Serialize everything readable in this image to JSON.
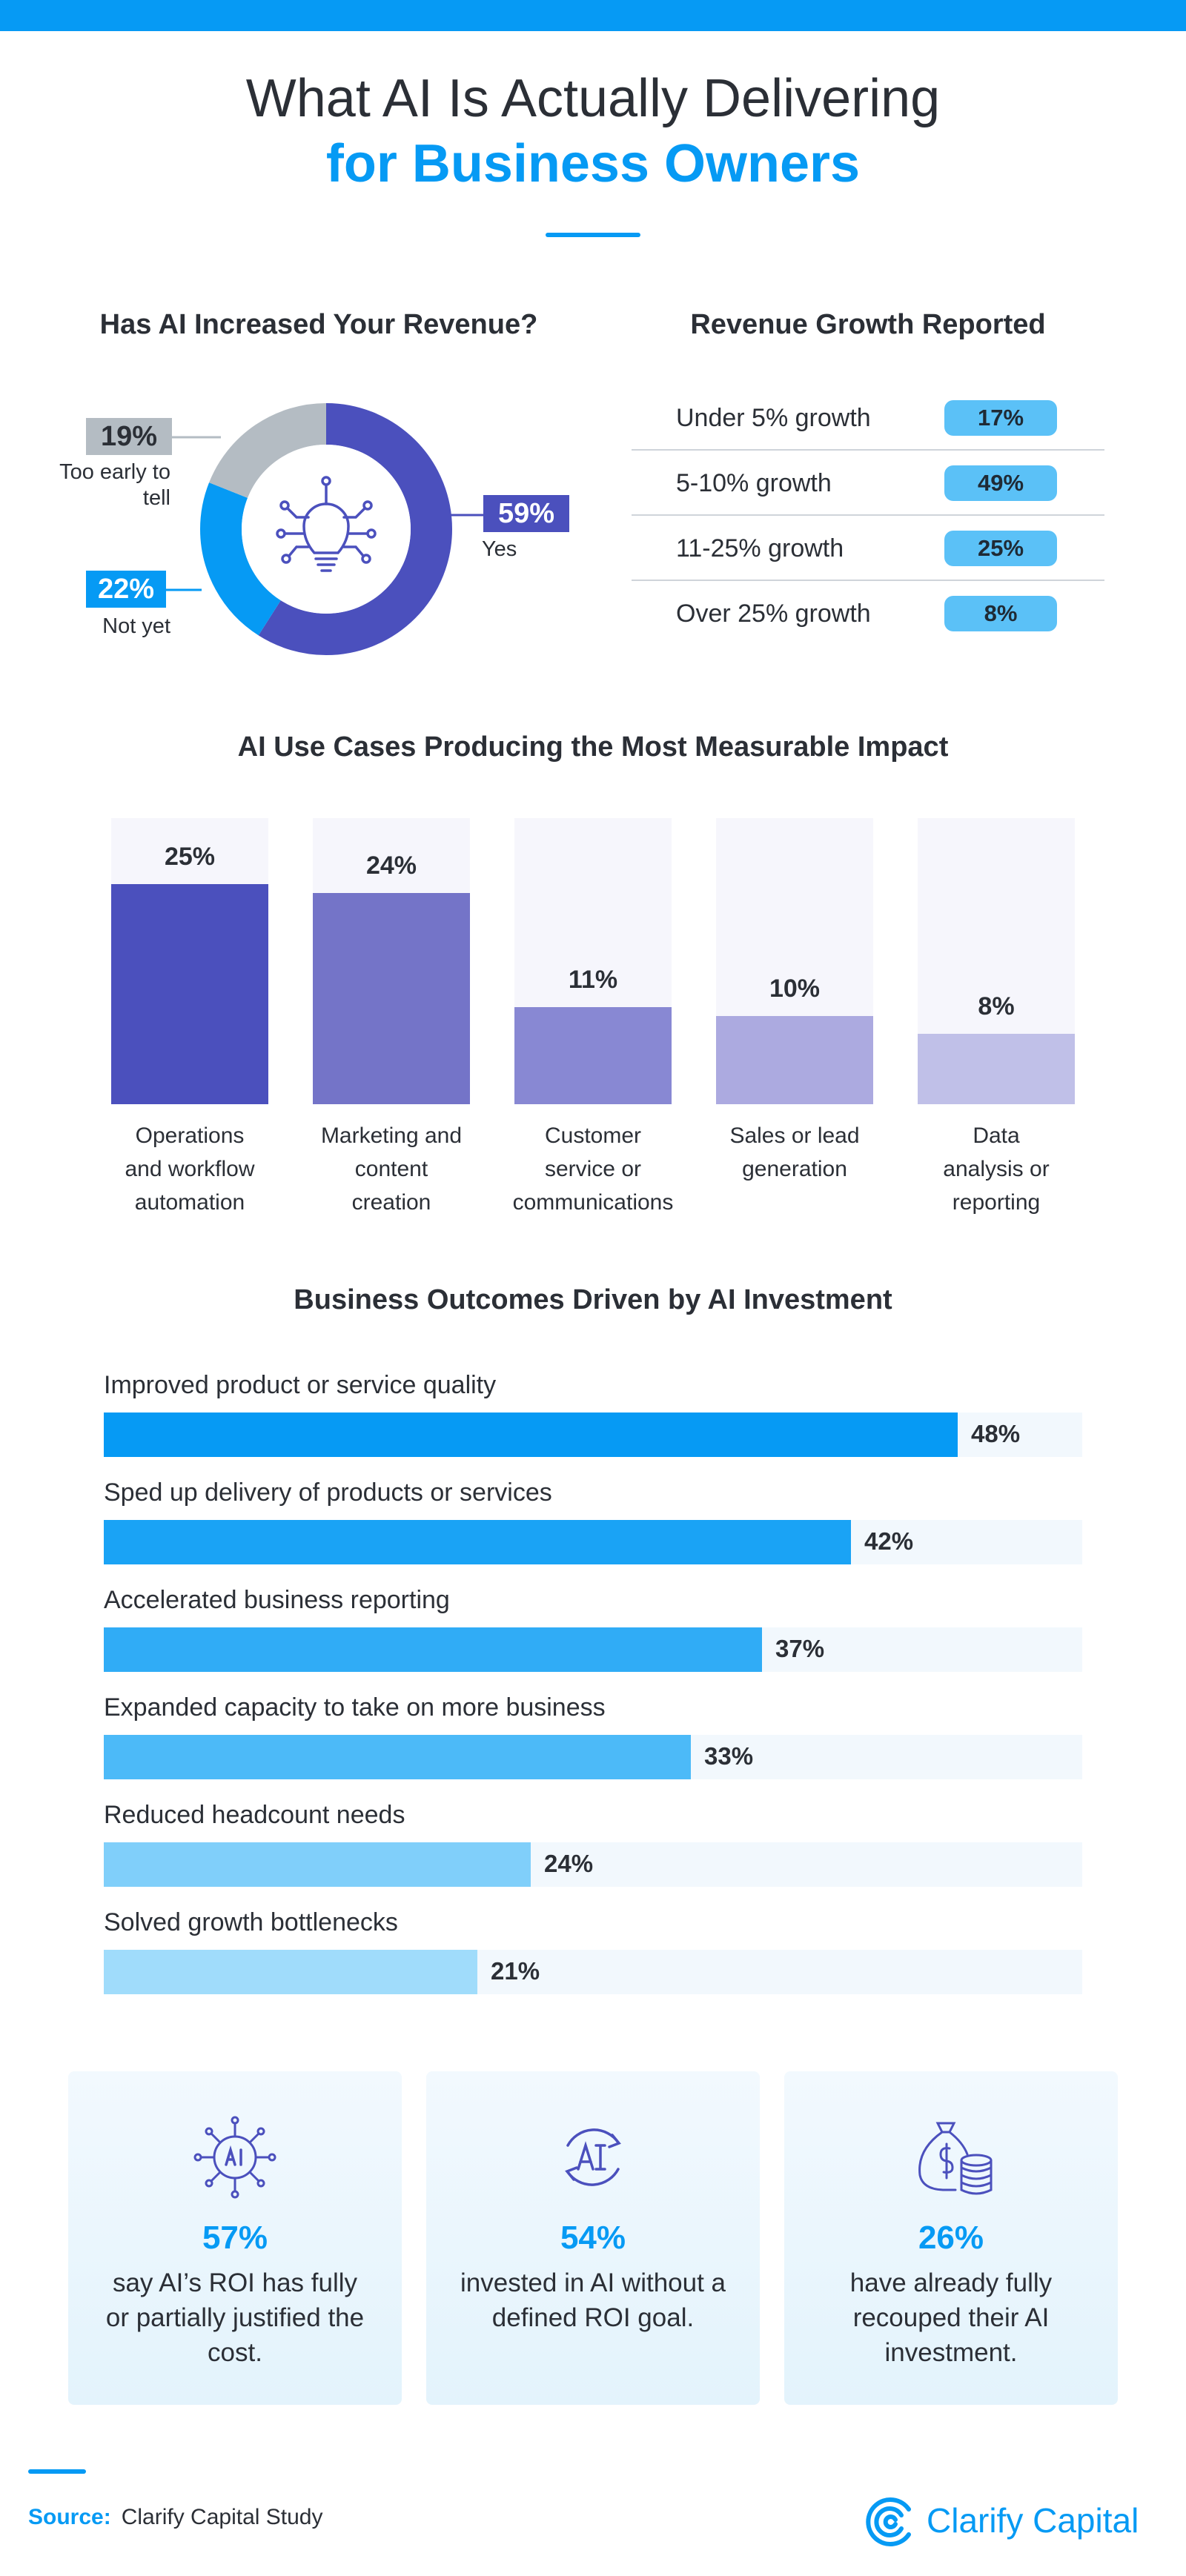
{
  "header": {
    "title_line1": "What AI Is Actually Delivering",
    "title_line2": "for Business Owners"
  },
  "colors": {
    "brand_blue": "#069af4",
    "donut_yes": "#4b50bd",
    "donut_not_yet": "#069af4",
    "donut_too_early": "#b4bcc3"
  },
  "chart_data": [
    {
      "type": "pie",
      "title": "Has AI Increased Your Revenue?",
      "center_icon": "lightbulb-circuit-icon",
      "slices": [
        {
          "label": "Yes",
          "value": 59,
          "display": "59%",
          "color": "#4b50bd"
        },
        {
          "label": "Not yet",
          "value": 22,
          "display": "22%",
          "color": "#069af4"
        },
        {
          "label": "Too early to tell",
          "value": 19,
          "display": "19%",
          "color": "#b4bcc3"
        }
      ]
    },
    {
      "type": "table",
      "title": "Revenue Growth Reported",
      "rows": [
        {
          "label": "Under 5% growth",
          "value": 17,
          "display": "17%"
        },
        {
          "label": "5-10% growth",
          "value": 49,
          "display": "49%"
        },
        {
          "label": "11-25% growth",
          "value": 25,
          "display": "25%"
        },
        {
          "label": "Over 25% growth",
          "value": 8,
          "display": "8%"
        }
      ]
    },
    {
      "type": "bar",
      "title": "AI Use Cases Producing the Most Measurable Impact",
      "ylim": [
        0,
        32.5
      ],
      "categories": [
        [
          "Operations",
          "and workflow",
          "automation"
        ],
        [
          "Marketing and",
          "content",
          "creation"
        ],
        [
          "Customer",
          "service or",
          "communications"
        ],
        [
          "Sales or lead",
          "generation"
        ],
        [
          "Data",
          "analysis or",
          "reporting"
        ]
      ],
      "values": [
        25,
        24,
        11,
        10,
        8
      ],
      "display": [
        "25%",
        "24%",
        "11%",
        "10%",
        "8%"
      ],
      "colors": [
        "#4b50bd",
        "#7474c8",
        "#8888d3",
        "#acaae0",
        "#c0c0e8"
      ]
    },
    {
      "type": "bar",
      "orientation": "horizontal",
      "title": "Business Outcomes Driven by AI Investment",
      "xlim": [
        0,
        55
      ],
      "categories": [
        "Improved product or service quality",
        "Sped up delivery of products or services",
        "Accelerated business reporting",
        "Expanded capacity to take on more business",
        "Reduced headcount needs",
        "Solved growth bottlenecks"
      ],
      "values": [
        48,
        42,
        37,
        33,
        24,
        21
      ],
      "display": [
        "48%",
        "42%",
        "37%",
        "33%",
        "24%",
        "21%"
      ],
      "colors": [
        "#069af4",
        "#1aa3f5",
        "#30acf6",
        "#4cbaf8",
        "#80cffa",
        "#a0dcfb"
      ]
    }
  ],
  "stats": [
    {
      "icon": "ai-chip-icon",
      "value": "57%",
      "text": "say AI’s ROI has fully or partially justified the cost."
    },
    {
      "icon": "ai-cycle-icon",
      "value": "54%",
      "text": "invested in AI without a defined ROI goal."
    },
    {
      "icon": "money-bag-coins-icon",
      "value": "26%",
      "text": "have already fully recouped their AI investment."
    }
  ],
  "footer": {
    "source_key": "Source:",
    "source_value": "Clarify Capital Study",
    "brand": "Clarify Capital"
  }
}
